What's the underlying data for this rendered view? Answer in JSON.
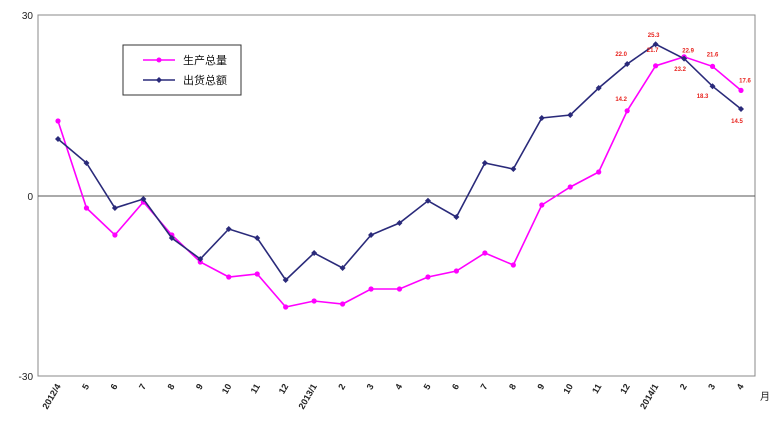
{
  "chart_data": {
    "type": "line",
    "title": "",
    "xlabel": "",
    "ylabel": "",
    "x_unit": "月",
    "ylim": [
      -30,
      30
    ],
    "yticks": [
      "30",
      "0",
      "-30"
    ],
    "categories": [
      "2012/4",
      "5",
      "6",
      "7",
      "8",
      "9",
      "10",
      "11",
      "12",
      "2013/1",
      "2",
      "3",
      "4",
      "5",
      "6",
      "7",
      "8",
      "9",
      "10",
      "11",
      "12",
      "2014/1",
      "2",
      "3",
      "4"
    ],
    "grid": false,
    "legend_position": "top-left",
    "series": [
      {
        "name": "生产总量",
        "color": "#ff00ff",
        "marker": "circle",
        "values": [
          12.5,
          -2.0,
          -6.5,
          -1.0,
          -6.5,
          -11.0,
          -13.5,
          -13.0,
          -18.5,
          -17.5,
          -18.0,
          -15.5,
          -15.5,
          -13.5,
          -12.5,
          -9.5,
          -11.5,
          -1.5,
          1.5,
          4.0,
          14.2,
          21.7,
          23.2,
          21.6,
          17.6
        ],
        "labels": [
          null,
          null,
          null,
          null,
          null,
          null,
          null,
          null,
          null,
          null,
          null,
          null,
          null,
          null,
          null,
          null,
          null,
          null,
          null,
          null,
          "14.2",
          "21.7",
          "23.2",
          "21.6",
          "17.6"
        ],
        "label_color": "#e8231e"
      },
      {
        "name": "出货总额",
        "color": "#2a2a7a",
        "marker": "diamond",
        "values": [
          9.5,
          5.5,
          -2.0,
          -0.5,
          -7.0,
          -10.5,
          -5.5,
          -7.0,
          -14.0,
          -9.5,
          -12.0,
          -6.5,
          -4.5,
          -0.8,
          -3.5,
          5.5,
          4.5,
          13.0,
          13.5,
          18.0,
          22.0,
          25.3,
          22.9,
          18.3,
          14.5
        ],
        "labels": [
          null,
          null,
          null,
          null,
          null,
          null,
          null,
          null,
          null,
          null,
          null,
          null,
          null,
          null,
          null,
          null,
          null,
          null,
          null,
          null,
          "22.0",
          "25.3",
          "22.9",
          "18.3",
          "14.5"
        ],
        "label_color": "#e8231e"
      }
    ]
  }
}
